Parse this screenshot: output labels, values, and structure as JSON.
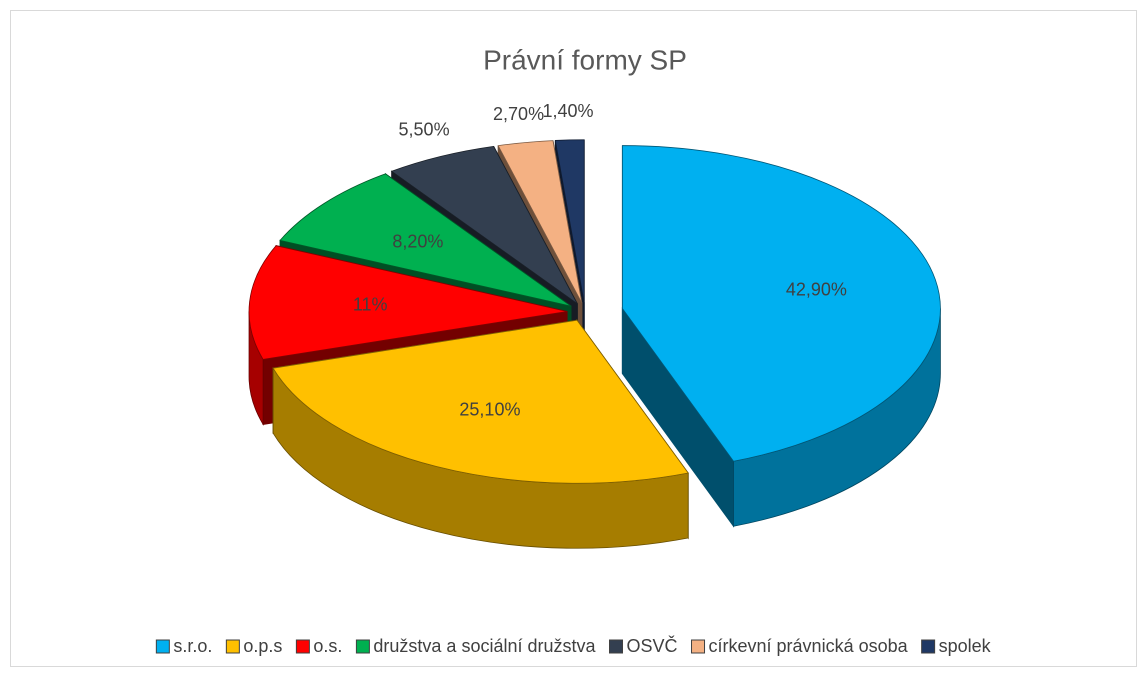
{
  "chart_data": {
    "type": "pie",
    "title": "Právní formy SP",
    "categories": [
      "s.r.o.",
      "o.p.s",
      "o.s.",
      "družstva a sociální družstva",
      "OSVČ",
      "církevní právnická osoba",
      "spolek"
    ],
    "values": [
      42.9,
      25.1,
      11,
      8.2,
      5.5,
      2.7,
      1.4
    ],
    "value_labels": [
      "42,90%",
      "25,10%",
      "11%",
      "8,20%",
      "5,50%",
      "2,70%",
      "1,40%"
    ],
    "colors": [
      "#00b0f0",
      "#ffc000",
      "#ff0000",
      "#00b050",
      "#333f50",
      "#f4b183",
      "#1f3864"
    ],
    "legend": "bottom"
  }
}
